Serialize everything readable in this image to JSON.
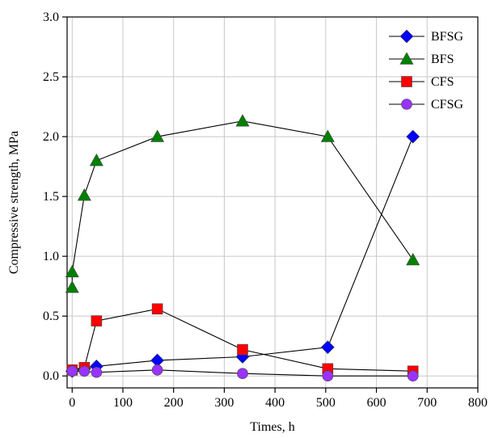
{
  "chart_data": {
    "type": "line",
    "title": "",
    "xlabel": "Times, h",
    "ylabel": "Compressive strength, MPa",
    "xlim": [
      -10,
      800
    ],
    "ylim": [
      -0.1,
      3.0
    ],
    "xticks": [
      0,
      100,
      200,
      300,
      400,
      500,
      600,
      700,
      800
    ],
    "yticks": [
      0.0,
      0.5,
      1.0,
      1.5,
      2.0,
      2.5,
      3.0
    ],
    "xtick_labels": [
      "0",
      "100",
      "200",
      "300",
      "400",
      "500",
      "600",
      "700",
      "800"
    ],
    "ytick_labels": [
      "0.0",
      "0.5",
      "1.0",
      "1.5",
      "2.0",
      "2.5",
      "3.0"
    ],
    "grid": true,
    "legend_position": "top-right",
    "series": [
      {
        "name": "BFSG",
        "marker": "diamond",
        "color": "#0000ff",
        "points": [
          [
            0,
            0.04
          ],
          [
            24,
            0.06
          ],
          [
            48,
            0.08
          ],
          [
            168,
            0.13
          ],
          [
            336,
            0.16
          ],
          [
            504,
            0.24
          ],
          [
            672,
            2.0
          ]
        ]
      },
      {
        "name": "BFS",
        "marker": "triangle",
        "color": "#008000",
        "points": [
          [
            0,
            0.74
          ],
          [
            0,
            0.87
          ],
          [
            24,
            1.51
          ],
          [
            48,
            1.8
          ],
          [
            168,
            2.0
          ],
          [
            336,
            2.13
          ],
          [
            504,
            2.0
          ],
          [
            672,
            0.97
          ]
        ]
      },
      {
        "name": "CFS",
        "marker": "square",
        "color": "#ff0000",
        "points": [
          [
            0,
            0.05
          ],
          [
            24,
            0.07
          ],
          [
            48,
            0.46
          ],
          [
            168,
            0.56
          ],
          [
            336,
            0.22
          ],
          [
            504,
            0.06
          ],
          [
            672,
            0.04
          ]
        ]
      },
      {
        "name": "CFSG",
        "marker": "circle",
        "color": "#9933ff",
        "points": [
          [
            0,
            0.04
          ],
          [
            24,
            0.04
          ],
          [
            48,
            0.03
          ],
          [
            168,
            0.05
          ],
          [
            336,
            0.02
          ],
          [
            504,
            0.0
          ],
          [
            672,
            0.0
          ]
        ]
      }
    ]
  }
}
